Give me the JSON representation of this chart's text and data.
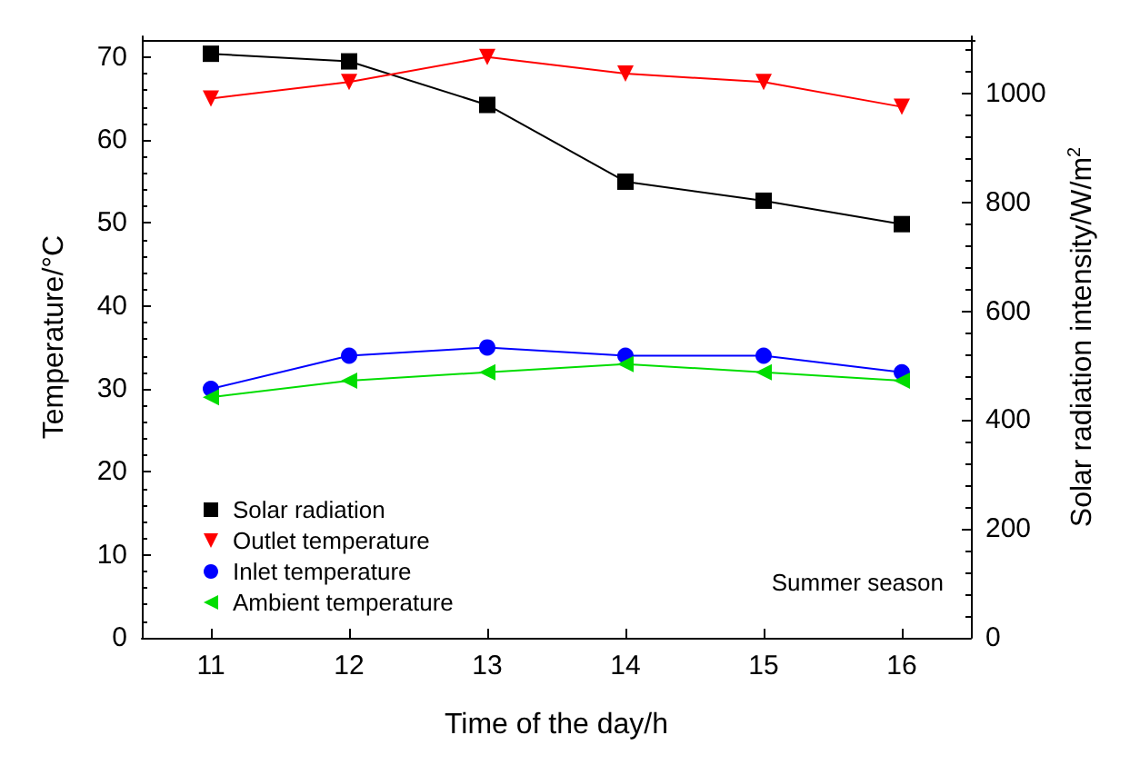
{
  "chart_data": {
    "type": "line",
    "xlabel": "Time of the day/h",
    "ylabel": "Temperature/°C",
    "y2label": "Solar radiation intensity/W/m$^{2}$",
    "categories": [
      "11",
      "12",
      "13",
      "14",
      "15",
      "16"
    ],
    "series": [
      {
        "name": "Solar radiation",
        "color": "#000000",
        "marker": "square",
        "axis": "y2",
        "values": [
          1073,
          1059,
          979,
          838,
          803,
          760
        ]
      },
      {
        "name": "Outlet temperature",
        "color": "#ff0000",
        "marker": "triangle-down",
        "values": [
          65,
          67,
          70,
          68,
          67,
          64
        ]
      },
      {
        "name": "Inlet temperature",
        "color": "#0000ff",
        "marker": "circle",
        "values": [
          30,
          34,
          35,
          34,
          34,
          32
        ]
      },
      {
        "name": "Ambient temperature",
        "color": "#00dd00",
        "marker": "triangle-left",
        "values": [
          29,
          31,
          32,
          33,
          32,
          31
        ]
      }
    ],
    "ylim": [
      0,
      72.5
    ],
    "yticks": [
      0,
      10,
      20,
      30,
      40,
      50,
      60,
      70
    ],
    "y2lim": [
      0,
      1105
    ],
    "y2ticks": [
      0,
      200,
      400,
      600,
      800,
      1000
    ],
    "legend": "bottom left",
    "grid": false,
    "annotations": [
      "Summer season"
    ]
  }
}
